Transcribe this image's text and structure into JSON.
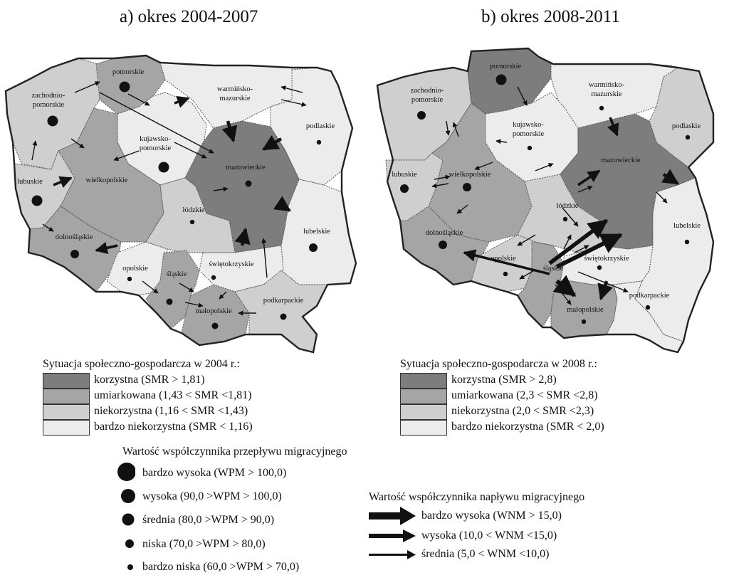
{
  "colors": {
    "korzystna": "#7d7d7d",
    "umiarkowana": "#a5a5a5",
    "niekorzystna": "#cfcfcf",
    "bardzo_niekorzystna": "#ececec",
    "ink": "#111111"
  },
  "maps": [
    {
      "title": "a) okres 2004-2007",
      "regions": {
        "pomorskie": {
          "label": "pomorskie",
          "level": "umiarkowana",
          "wpm": "wysoka"
        },
        "zachodniopomorskie": {
          "label": "zachodnio-\npomorskie",
          "level": "niekorzystna",
          "wpm": "wysoka"
        },
        "warminsko": {
          "label": "warmińsko-\nmazurskie",
          "level": "bardzo_niekorzystna",
          "wpm": "none"
        },
        "podlaskie": {
          "label": "podlaskie",
          "level": "bardzo_niekorzystna",
          "wpm": "bardzo_niska"
        },
        "kujawsko": {
          "label": "kujawsko-\npomorskie",
          "level": "bardzo_niekorzystna",
          "wpm": "wysoka"
        },
        "mazowieckie": {
          "label": "mazowieckie",
          "level": "korzystna",
          "wpm": "niska"
        },
        "lubuskie": {
          "label": "lubuskie",
          "level": "niekorzystna",
          "wpm": "wysoka"
        },
        "wielkopolskie": {
          "label": "wielkopolskie",
          "level": "umiarkowana",
          "wpm": "none"
        },
        "lodzkie": {
          "label": "łódzkie",
          "level": "niekorzystna",
          "wpm": "bardzo_niska"
        },
        "lubelskie": {
          "label": "lubelskie",
          "level": "bardzo_niekorzystna",
          "wpm": "srednia"
        },
        "dolnoslaskie": {
          "label": "dolnośląskie",
          "level": "umiarkowana",
          "wpm": "srednia"
        },
        "opolskie": {
          "label": "opolskie",
          "level": "bardzo_niekorzystna",
          "wpm": "bardzo_niska"
        },
        "slaskie": {
          "label": "śląskie",
          "level": "umiarkowana",
          "wpm": "niska"
        },
        "swietokrzyskie": {
          "label": "świętokrzyskie",
          "level": "bardzo_niekorzystna",
          "wpm": "bardzo_niska"
        },
        "malopolskie": {
          "label": "małopolskie",
          "level": "umiarkowana",
          "wpm": "niska"
        },
        "podkarpackie": {
          "label": "podkarpackie",
          "level": "niekorzystna",
          "wpm": "niska"
        }
      },
      "legend": {
        "heading": "Sytuacja społeczno-gospodarcza w 2004 r.:",
        "items": [
          {
            "level": "korzystna",
            "text": "korzystna (SMR > 1,81)"
          },
          {
            "level": "umiarkowana",
            "text": "umiarkowana (1,43 < SMR <1,81)"
          },
          {
            "level": "niekorzystna",
            "text": "niekorzystna (1,16 < SMR <1,43)"
          },
          {
            "level": "bardzo_niekorzystna",
            "text": "bardzo niekorzystna (SMR < 1,16)"
          }
        ]
      }
    },
    {
      "title": "b) okres 2008-2011",
      "regions": {
        "pomorskie": {
          "label": "pomorskie",
          "level": "korzystna",
          "wpm": "wysoka"
        },
        "zachodniopomorskie": {
          "label": "zachodnio-\npomorskie",
          "level": "niekorzystna",
          "wpm": "srednia"
        },
        "warminsko": {
          "label": "warmińsko-\nmazurskie",
          "level": "bardzo_niekorzystna",
          "wpm": "bardzo_niska"
        },
        "podlaskie": {
          "label": "podlaskie",
          "level": "niekorzystna",
          "wpm": "bardzo_niska"
        },
        "kujawsko": {
          "label": "kujawsko-\npomorskie",
          "level": "bardzo_niekorzystna",
          "wpm": "bardzo_niska"
        },
        "mazowieckie": {
          "label": "mazowieckie",
          "level": "korzystna",
          "wpm": "none"
        },
        "lubuskie": {
          "label": "lubuskie",
          "level": "niekorzystna",
          "wpm": "srednia"
        },
        "wielkopolskie": {
          "label": "wielkopolskie",
          "level": "umiarkowana",
          "wpm": "srednia"
        },
        "lodzkie": {
          "label": "łódzkie",
          "level": "niekorzystna",
          "wpm": "bardzo_niska"
        },
        "lubelskie": {
          "label": "lubelskie",
          "level": "bardzo_niekorzystna",
          "wpm": "bardzo_niska"
        },
        "dolnoslaskie": {
          "label": "dolnośląskie",
          "level": "umiarkowana",
          "wpm": "srednia"
        },
        "opolskie": {
          "label": "opolskie",
          "level": "niekorzystna",
          "wpm": "bardzo_niska"
        },
        "slaskie": {
          "label": "śląskie",
          "level": "umiarkowana",
          "wpm": "none"
        },
        "swietokrzyskie": {
          "label": "świętokrzyskie",
          "level": "bardzo_niekorzystna",
          "wpm": "bardzo_niska"
        },
        "malopolskie": {
          "label": "małopolskie",
          "level": "umiarkowana",
          "wpm": "bardzo_niska"
        },
        "podkarpackie": {
          "label": "podkarpackie",
          "level": "bardzo_niekorzystna",
          "wpm": "bardzo_niska"
        }
      },
      "legend": {
        "heading": "Sytuacja społeczno-gospodarcza w 2008 r.:",
        "items": [
          {
            "level": "korzystna",
            "text": "korzystna (SMR > 2,8)"
          },
          {
            "level": "umiarkowana",
            "text": "umiarkowana (2,3 < SMR <2,8)"
          },
          {
            "level": "niekorzystna",
            "text": "niekorzystna (2,0 < SMR <2,3)"
          },
          {
            "level": "bardzo_niekorzystna",
            "text": "bardzo niekorzystna (SMR < 2,0)"
          }
        ]
      }
    }
  ],
  "wpm_legend": {
    "heading": "Wartość współczynnika przepływu migracyjnego",
    "items": [
      {
        "key": "bardzo_wysoka",
        "text": "bardzo wysoka (WPM > 100,0)"
      },
      {
        "key": "wysoka",
        "text": "wysoka (90,0 >WPM > 100,0)"
      },
      {
        "key": "srednia",
        "text": "średnia (80,0 >WPM > 90,0)"
      },
      {
        "key": "niska",
        "text": "niska (70,0 >WPM > 80,0)"
      },
      {
        "key": "bardzo_niska",
        "text": "bardzo niska (60,0 >WPM > 70,0)"
      }
    ]
  },
  "wnm_legend": {
    "heading": "Wartość współczynnika napływu migracyjnego",
    "items": [
      {
        "key": "bardzo_wysoka",
        "text": "bardzo wysoka (WNM > 15,0)"
      },
      {
        "key": "wysoka",
        "text": "wysoka (10,0 < WNM <15,0)"
      },
      {
        "key": "srednia",
        "text": "średnia (5,0 < WNM <10,0)"
      }
    ]
  }
}
